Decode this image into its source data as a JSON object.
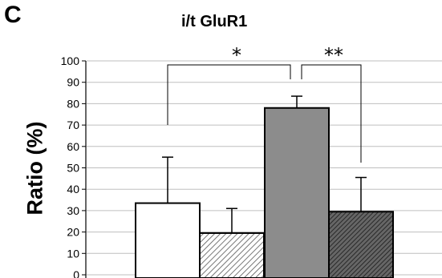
{
  "panel_label": "C",
  "chart_data": {
    "type": "bar",
    "title": "i/t GluR1",
    "xlabel": "",
    "ylabel": "Ratio (%)",
    "ylim": [
      0,
      100
    ],
    "yticks": [
      0,
      10,
      20,
      30,
      40,
      50,
      60,
      70,
      80,
      90,
      100
    ],
    "grid": true,
    "bars": [
      {
        "value": 33.5,
        "error": 21.5,
        "fill": "white"
      },
      {
        "value": 19.5,
        "error": 11.5,
        "fill": "light-hatch"
      },
      {
        "value": 78,
        "error": 5.5,
        "fill": "#8c8c8c"
      },
      {
        "value": 29.5,
        "error": 16,
        "fill": "dark-hatch"
      }
    ],
    "annotations": [
      {
        "text": "*",
        "from_bar": 0,
        "to_bar": 2
      },
      {
        "text": "**",
        "from_bar": 2,
        "to_bar": 3
      }
    ]
  }
}
